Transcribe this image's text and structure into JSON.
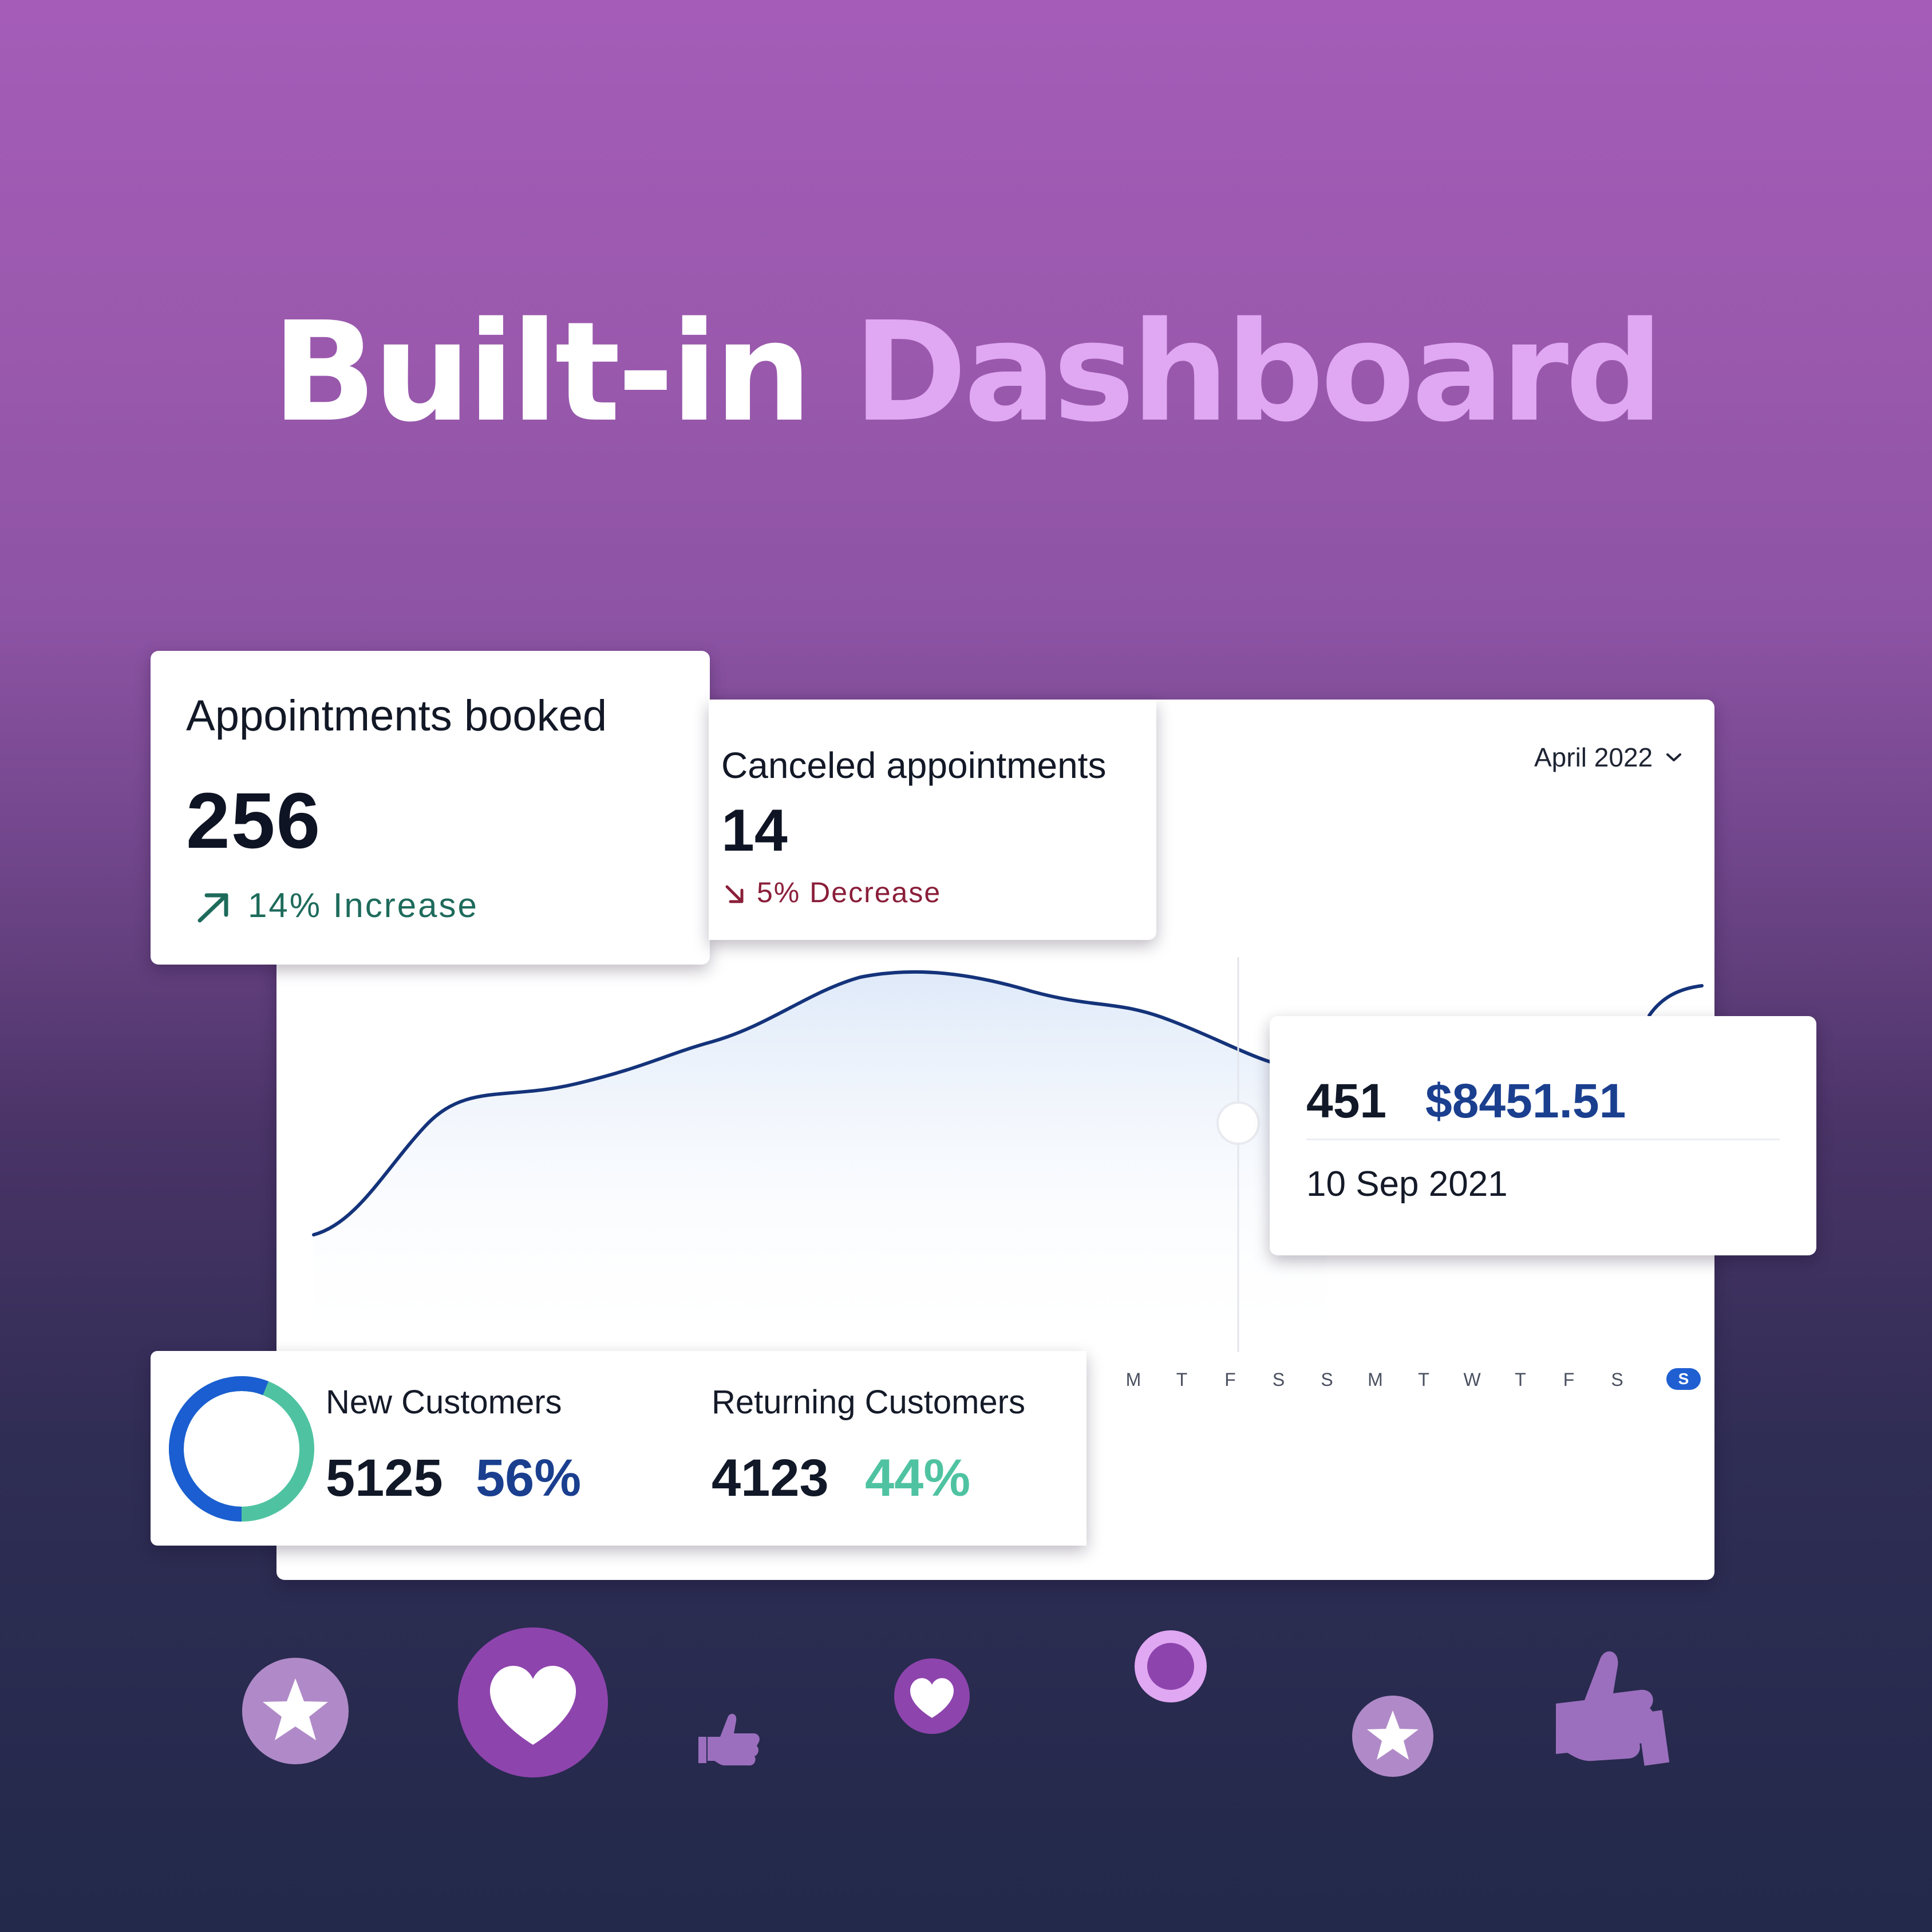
{
  "headline": {
    "word1": "Built-in",
    "word2": "Dashboard"
  },
  "appointments": {
    "title": "Appointments booked",
    "value": "256",
    "trend": "14% Increase"
  },
  "canceled": {
    "title": "Canceled appointments",
    "value": "14",
    "trend": "5% Decrease"
  },
  "date_filter": {
    "selected": "April 2022"
  },
  "tooltip": {
    "count": "451",
    "amount": "$8451.51",
    "date": "10 Sep 2021"
  },
  "customers": {
    "new": {
      "label": "New Customers",
      "value": "5125",
      "percent": "56%"
    },
    "returning": {
      "label": "Returning Customers",
      "value": "4123",
      "percent": "44%"
    }
  },
  "day_ticks": [
    "M",
    "T",
    "F",
    "S",
    "S",
    "M",
    "T",
    "W",
    "T",
    "F",
    "S"
  ],
  "day_selected": "S",
  "colors": {
    "primary_blue": "#1b3f8f",
    "teal": "#4fc3a1",
    "increase_green": "#1e6b5c",
    "decrease_red": "#8a1f3a",
    "accent_purple": "#e0a7f2"
  },
  "reaction_icons": [
    "star-icon",
    "heart-icon",
    "thumbs-up-icon",
    "heart-icon",
    "ring-icon",
    "star-icon",
    "thumbs-up-icon"
  ]
}
